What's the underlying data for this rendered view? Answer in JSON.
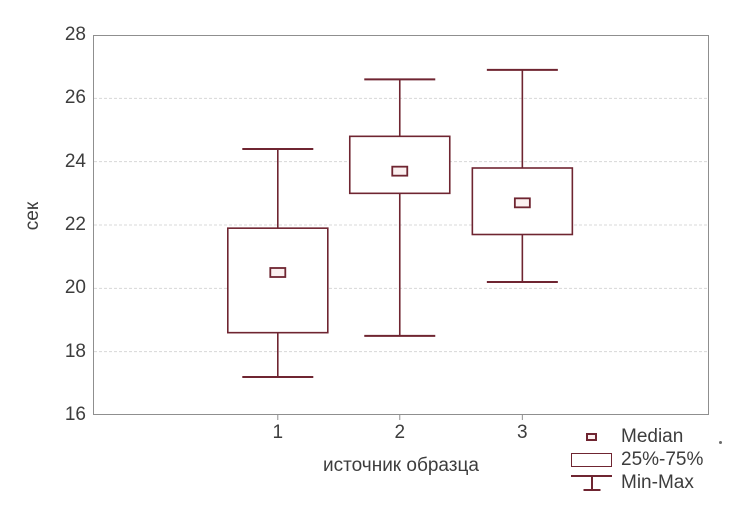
{
  "chart_data": {
    "type": "box",
    "title": "",
    "ylabel": "сек",
    "xlabel": "источник образца",
    "categories": [
      "1",
      "2",
      "3"
    ],
    "ylim": [
      16,
      28
    ],
    "yticks": [
      16,
      18,
      20,
      22,
      24,
      26,
      28
    ],
    "grid": "horizontal dashed gridlines at 18, 20, 22, 24, 26",
    "legend_position": "bottom-right, below plot area",
    "legend": [
      {
        "icon": "median-square-icon",
        "label": "Median"
      },
      {
        "icon": "iqr-box-icon",
        "label": "25%-75%"
      },
      {
        "icon": "min-max-whisker-icon",
        "label": "Min-Max"
      }
    ],
    "series": [
      {
        "category": "1",
        "min": 17.2,
        "q1": 18.6,
        "median": 20.5,
        "q3": 21.9,
        "max": 24.4
      },
      {
        "category": "2",
        "min": 18.5,
        "q1": 23.0,
        "median": 23.7,
        "q3": 24.8,
        "max": 26.6
      },
      {
        "category": "3",
        "min": 20.2,
        "q1": 21.7,
        "median": 22.7,
        "q3": 23.8,
        "max": 26.9
      }
    ],
    "colors": {
      "box_stroke": "#6f2531",
      "box_fill": "#ffffff",
      "median_fill": "#fbf0f0",
      "axis": "#8f8f8f",
      "grid": "#d8d8d8",
      "text": "#3d3d3d"
    }
  }
}
